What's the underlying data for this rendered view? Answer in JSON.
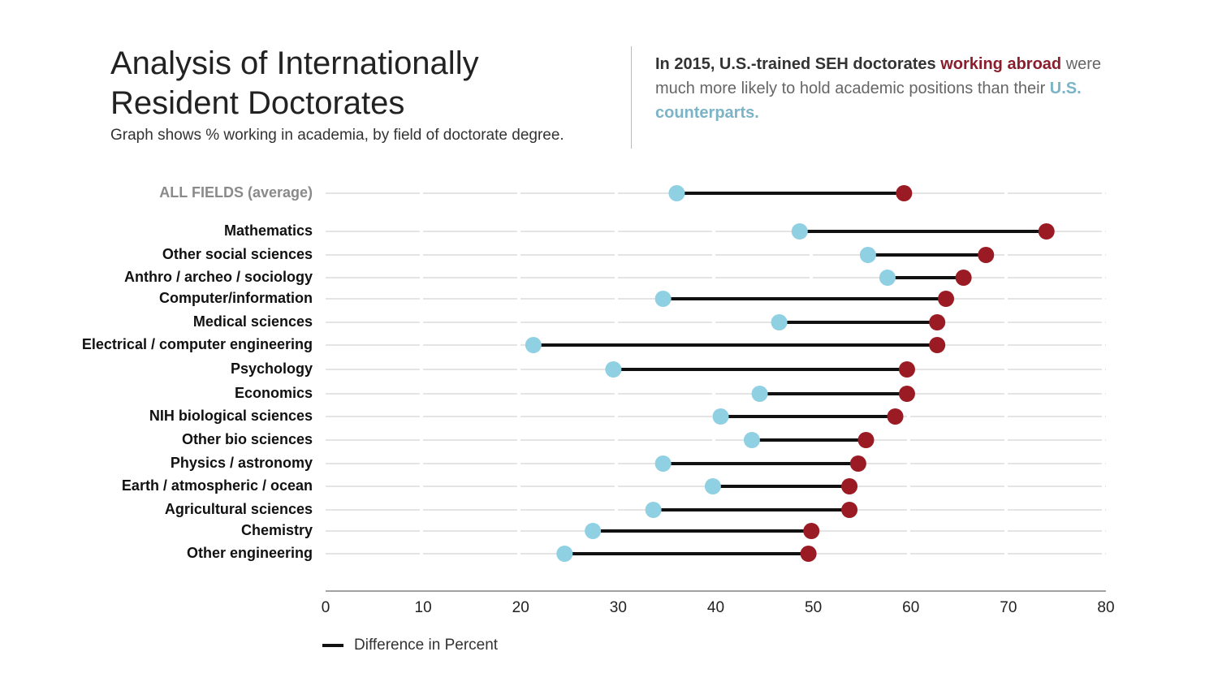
{
  "header": {
    "title": "Analysis of Internationally Resident Doctorates",
    "subtitle": "Graph shows % working in academia, by field of doctorate degree.",
    "headline_lead": "In 2015, U.S.-trained SEH doctorates",
    "headline_abroad": "working abroad",
    "headline_mid": "were much more likely to hold academic positions than their",
    "headline_us": "U.S. counterparts."
  },
  "legend": {
    "label": "Difference in Percent"
  },
  "colors": {
    "abroad": "#9b1b24",
    "us": "#8fd0e3",
    "connector": "#111111",
    "grid": "#d4d4d4",
    "label": "#111111",
    "average_label": "#8a8a8a"
  },
  "chart_data": {
    "type": "dumbbell",
    "xlim": [
      0,
      80
    ],
    "xticks": [
      0,
      10,
      20,
      30,
      40,
      50,
      60,
      70,
      80
    ],
    "grid": true,
    "series": [
      {
        "name": "working abroad",
        "key": "abroad"
      },
      {
        "name": "U.S. counterparts",
        "key": "us"
      }
    ],
    "rows": [
      {
        "category": "ALL FIELDS (average)",
        "us": 36,
        "abroad": 59.3,
        "average": true
      },
      {
        "category": "Mathematics",
        "us": 48.6,
        "abroad": 73.9
      },
      {
        "category": "Other social sciences",
        "us": 55.6,
        "abroad": 67.7
      },
      {
        "category": "Anthro / archeo / sociology",
        "us": 57.6,
        "abroad": 65.4
      },
      {
        "category": "Computer/information",
        "us": 34.6,
        "abroad": 63.6
      },
      {
        "category": "Medical sciences",
        "us": 46.5,
        "abroad": 62.7
      },
      {
        "category": "Electrical / computer engineering",
        "us": 21.3,
        "abroad": 62.7
      },
      {
        "category": "Psychology",
        "us": 29.5,
        "abroad": 59.6
      },
      {
        "category": "Economics",
        "us": 44.5,
        "abroad": 59.6
      },
      {
        "category": "NIH biological sciences",
        "us": 40.5,
        "abroad": 58.4
      },
      {
        "category": "Other bio sciences",
        "us": 43.7,
        "abroad": 55.4
      },
      {
        "category": "Physics / astronomy",
        "us": 34.6,
        "abroad": 54.6
      },
      {
        "category": "Earth / atmospheric / ocean",
        "us": 39.7,
        "abroad": 53.7
      },
      {
        "category": "Agricultural sciences",
        "us": 33.6,
        "abroad": 53.7
      },
      {
        "category": "Chemistry",
        "us": 27.4,
        "abroad": 49.8
      },
      {
        "category": "Other engineering",
        "us": 24.5,
        "abroad": 49.5
      }
    ]
  }
}
